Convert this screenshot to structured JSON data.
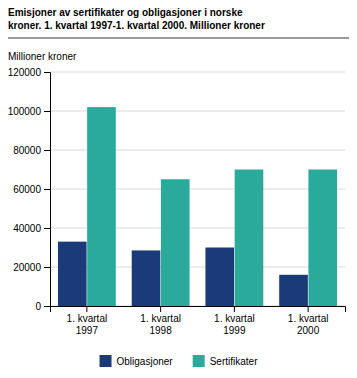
{
  "chart_data": {
    "type": "bar",
    "title": "Emisjoner av sertifikater og obligasjoner i norske\nkroner. 1. kvartal 1997-1. kvartal 2000. Millioner kroner",
    "y_label": "Millioner kroner",
    "categories": [
      "1. kvartal\n1997",
      "1. kvartal\n1998",
      "1. kvartal\n1999",
      "1. kvartal\n2000"
    ],
    "series": [
      {
        "name": "Obligasjoner",
        "color": "#1a3a7a",
        "values": [
          33000,
          28500,
          30000,
          16000
        ]
      },
      {
        "name": "Sertifikater",
        "color": "#2aaa9a",
        "values": [
          102000,
          65000,
          70000,
          70000
        ]
      }
    ],
    "ylim": [
      0,
      120000
    ],
    "yticks": [
      0,
      20000,
      40000,
      60000,
      80000,
      100000,
      120000
    ],
    "grid": true,
    "legend": "bottom"
  }
}
